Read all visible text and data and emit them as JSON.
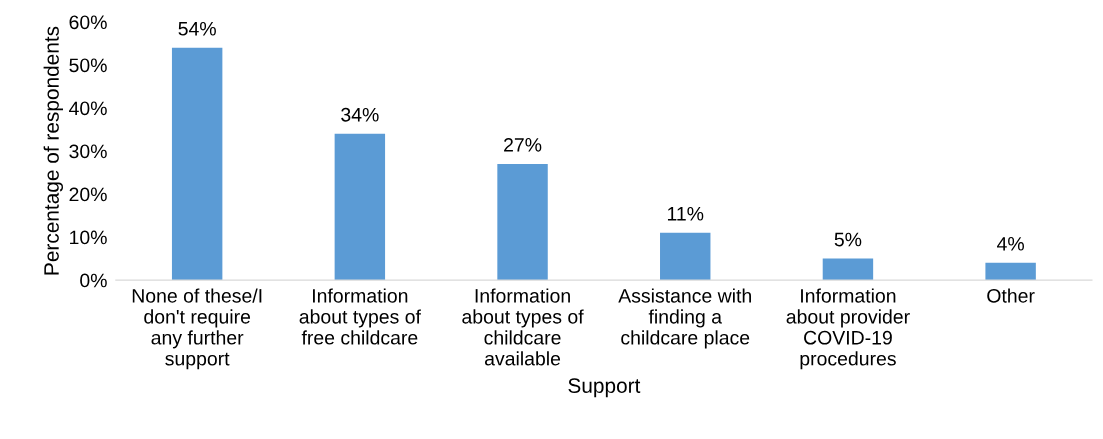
{
  "chart_data": {
    "type": "bar",
    "xlabel": "Support",
    "ylabel": "Percentage of respondents",
    "categories": [
      "None of these/I\ndon't require\nany further\nsupport",
      "Information\nabout types of\nfree childcare",
      "Information\nabout types of\nchildcare\navailable",
      "Assistance with\nfinding a\nchildcare place",
      "Information\nabout provider\nCOVID-19\nprocedures",
      "Other"
    ],
    "values": [
      54,
      34,
      27,
      11,
      5,
      4
    ],
    "value_labels": [
      "54%",
      "34%",
      "27%",
      "11%",
      "5%",
      "4%"
    ],
    "color": "#5b9bd5",
    "ylim": [
      0,
      60
    ],
    "yticks": [
      {
        "value": 0,
        "label": "0%"
      },
      {
        "value": 10,
        "label": "10%"
      },
      {
        "value": 20,
        "label": "20%"
      },
      {
        "value": 30,
        "label": "30%"
      },
      {
        "value": 40,
        "label": "40%"
      },
      {
        "value": 50,
        "label": "50%"
      },
      {
        "value": 60,
        "label": "60%"
      }
    ],
    "grid": false,
    "legend": false
  }
}
